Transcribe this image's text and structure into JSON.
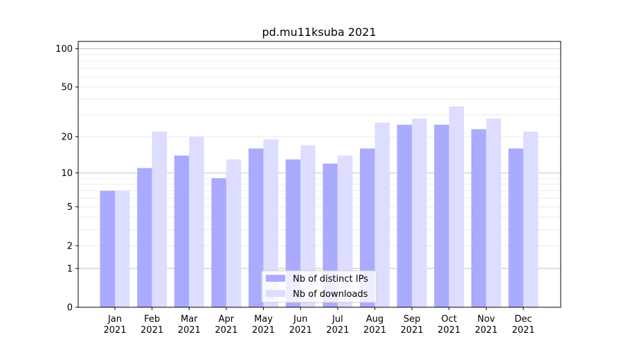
{
  "chart_data": {
    "type": "bar",
    "title": "pd.mu11ksuba 2021",
    "xlabel": "",
    "ylabel": "",
    "y_scale": "log(1+x)",
    "ylim": [
      0,
      114
    ],
    "y_ticks": [
      0,
      1,
      2,
      5,
      10,
      20,
      50,
      100
    ],
    "grid": "horizontal major and minor",
    "legend_position": "lower center",
    "categories": [
      "Jan\n2021",
      "Feb\n2021",
      "Mar\n2021",
      "Apr\n2021",
      "May\n2021",
      "Jun\n2021",
      "Jul\n2021",
      "Aug\n2021",
      "Sep\n2021",
      "Oct\n2021",
      "Nov\n2021",
      "Dec\n2021"
    ],
    "series": [
      {
        "name": "Nb of distinct IPs",
        "color": "#aaaaff",
        "values": [
          7,
          11,
          14,
          9,
          16,
          13,
          12,
          16,
          25,
          25,
          23,
          16
        ]
      },
      {
        "name": "Nb of downloads",
        "color": "#ddddff",
        "values": [
          7,
          22,
          20,
          13,
          19,
          17,
          14,
          26,
          28,
          35,
          28,
          22
        ]
      }
    ]
  }
}
